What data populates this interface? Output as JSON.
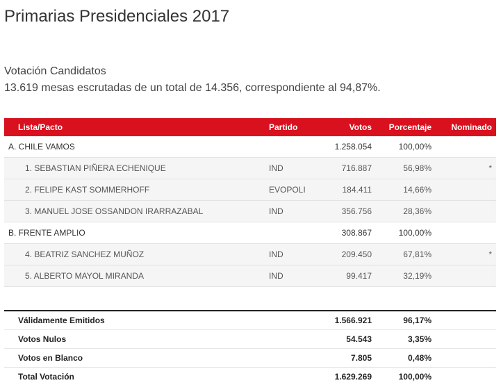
{
  "title": "Primarias Presidenciales 2017",
  "subtitle": "Votación Candidatos",
  "summary": "13.619 mesas escrutadas de un total de 14.356, correspondiente al 94,87%.",
  "table": {
    "headers": {
      "list": "Lista/Pacto",
      "party": "Partido",
      "votes": "Votos",
      "percent": "Porcentaje",
      "nominated": "Nominado"
    },
    "rows": [
      {
        "type": "pact",
        "name": "A. CHILE VAMOS",
        "party": "",
        "votes": "1.258.054",
        "percent": "100,00%",
        "nominated": ""
      },
      {
        "type": "candidate",
        "name": "1. SEBASTIAN PIÑERA ECHENIQUE",
        "party": "IND",
        "votes": "716.887",
        "percent": "56,98%",
        "nominated": "*"
      },
      {
        "type": "candidate",
        "name": "2. FELIPE KAST SOMMERHOFF",
        "party": "EVOPOLI",
        "votes": "184.411",
        "percent": "14,66%",
        "nominated": ""
      },
      {
        "type": "candidate",
        "name": "3. MANUEL JOSE OSSANDON IRARRAZABAL",
        "party": "IND",
        "votes": "356.756",
        "percent": "28,36%",
        "nominated": ""
      },
      {
        "type": "pact",
        "name": "B. FRENTE AMPLIO",
        "party": "",
        "votes": "308.867",
        "percent": "100,00%",
        "nominated": ""
      },
      {
        "type": "candidate",
        "name": "4. BEATRIZ SANCHEZ MUÑOZ",
        "party": "IND",
        "votes": "209.450",
        "percent": "67,81%",
        "nominated": "*"
      },
      {
        "type": "candidate",
        "name": "5. ALBERTO MAYOL MIRANDA",
        "party": "IND",
        "votes": "99.417",
        "percent": "32,19%",
        "nominated": ""
      }
    ]
  },
  "totals": [
    {
      "label": "Válidamente Emitidos",
      "votes": "1.566.921",
      "percent": "96,17%"
    },
    {
      "label": "Votos Nulos",
      "votes": "54.543",
      "percent": "3,35%"
    },
    {
      "label": "Votos en Blanco",
      "votes": "7.805",
      "percent": "0,48%"
    },
    {
      "label": "Total Votación",
      "votes": "1.629.269",
      "percent": "100,00%"
    }
  ]
}
